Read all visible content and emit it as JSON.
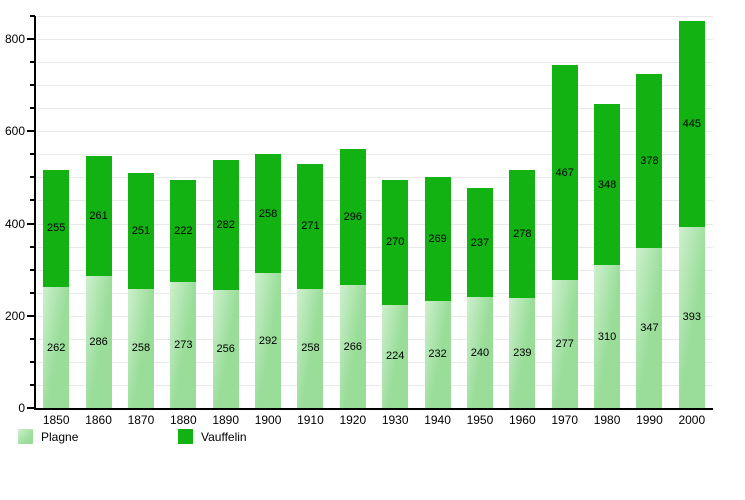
{
  "chart_data": {
    "type": "bar",
    "stacked": true,
    "title": "",
    "xlabel": "",
    "ylabel": "",
    "categories": [
      "1850",
      "1860",
      "1870",
      "1880",
      "1890",
      "1900",
      "1910",
      "1920",
      "1930",
      "1940",
      "1950",
      "1960",
      "1970",
      "1980",
      "1990",
      "2000"
    ],
    "series": [
      {
        "name": "Plagne",
        "color": "#99dd99",
        "color_light": "#cdf0cd",
        "values": [
          262,
          286,
          258,
          273,
          256,
          292,
          258,
          266,
          224,
          232,
          240,
          239,
          277,
          310,
          347,
          393
        ]
      },
      {
        "name": "Vauffelin",
        "color": "#12b212",
        "values": [
          255,
          261,
          251,
          222,
          282,
          258,
          271,
          296,
          270,
          269,
          237,
          278,
          467,
          348,
          378,
          445
        ]
      }
    ],
    "ylim": [
      0,
      850
    ],
    "y_major_tick": 200,
    "y_minor_tick": 50,
    "y_tick_labels": [
      "0",
      "200",
      "400",
      "600",
      "800"
    ],
    "grid": true,
    "value_labels": true,
    "legend_position": "bottom-left",
    "legend": [
      {
        "label": "Plagne"
      },
      {
        "label": "Vauffelin"
      }
    ]
  }
}
